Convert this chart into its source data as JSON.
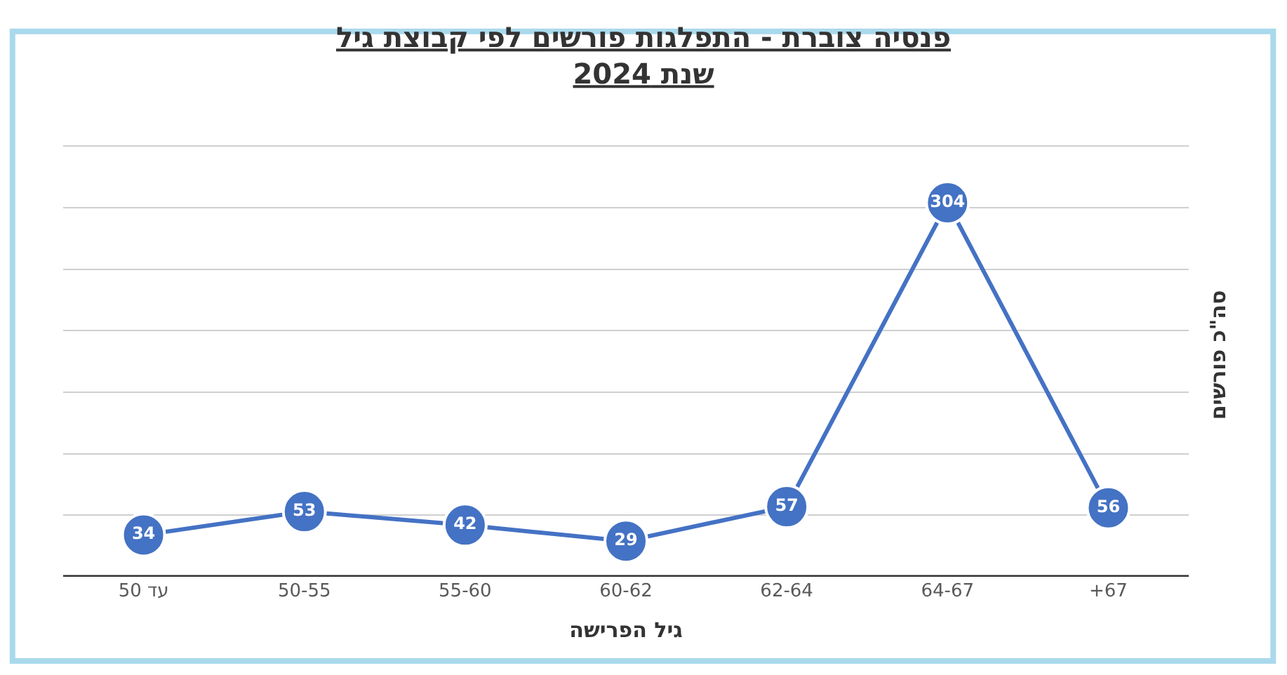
{
  "chart_data": {
    "type": "line",
    "title": "פנסיה צוברת - התפלגות פורשים לפי קבוצת גיל",
    "subtitle": "שנת 2024",
    "xlabel": "גיל הפרישה",
    "ylabel": "סה\"כ פורשים",
    "categories": [
      "עד 50",
      "50-55",
      "55-60",
      "60-62",
      "62-64",
      "64-67",
      "+67"
    ],
    "series": [
      {
        "color": "#4472c4",
        "values": [
          34,
          53,
          42,
          29,
          57,
          304,
          56
        ]
      }
    ],
    "yticks": [
      {
        "value": 0,
        "label": null
      },
      {
        "value": 50,
        "label": null
      },
      {
        "value": 100,
        "label": null
      },
      {
        "value": 150,
        "label": null
      },
      {
        "value": 200,
        "label": null
      },
      {
        "value": 250,
        "label": null
      },
      {
        "value": 300,
        "label": null
      },
      {
        "value": 350,
        "label": null
      }
    ],
    "tick_labels": "x",
    "grid": "y",
    "data_labels": true,
    "marker": "circle",
    "line_style": "solid",
    "legend": false
  }
}
